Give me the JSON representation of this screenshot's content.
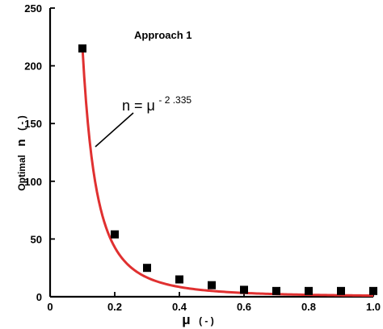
{
  "chart_data": {
    "type": "scatter",
    "annotation": "Approach 1",
    "xlabel": {
      "symbol": "μ",
      "unit": "(  -  )"
    },
    "ylabel": {
      "text": "Optimal",
      "symbol": "n",
      "unit": "(  -  )"
    },
    "equation": {
      "lhs": "n = μ",
      "exponent": "- 2 .335"
    },
    "xlim": [
      0,
      1.0
    ],
    "ylim": [
      0,
      250
    ],
    "xticks": [
      "0",
      "0.2",
      "0.4",
      "0.6",
      "0.8",
      "1.0"
    ],
    "yticks": [
      "0",
      "50",
      "100",
      "150",
      "200",
      "250"
    ],
    "points": {
      "x": [
        0.1,
        0.2,
        0.3,
        0.4,
        0.5,
        0.6,
        0.7,
        0.8,
        0.9,
        1.0
      ],
      "y": [
        215,
        54,
        25,
        15,
        10,
        6,
        5,
        5,
        5,
        5
      ]
    },
    "fit": {
      "coefficient": 1,
      "exponent": -2.335,
      "x_from": 0.1,
      "x_to": 1.0
    },
    "colors": {
      "fit": "#e03030",
      "points": "#000000",
      "axis": "#000000"
    }
  }
}
